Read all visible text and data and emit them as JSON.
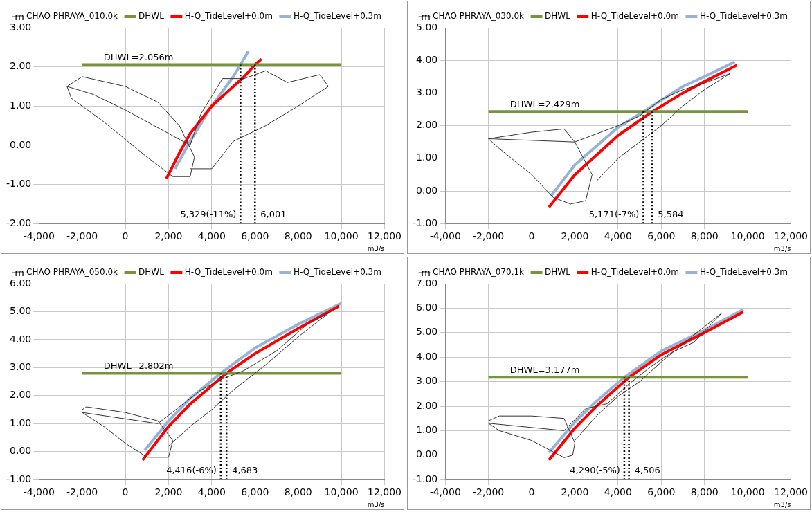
{
  "chart_data": [
    {
      "type": "line",
      "xlabel": "m3/s",
      "ylabel": "m",
      "legend": "top",
      "grid": true,
      "marker": "none",
      "xlim": [
        -4000,
        12000
      ],
      "xticks": [
        {
          "value": -4000,
          "label": "-4,000"
        },
        {
          "value": -2000,
          "label": "-2,000"
        },
        {
          "value": 0,
          "label": "0"
        },
        {
          "value": 2000,
          "label": "2,000"
        },
        {
          "value": 4000,
          "label": "4,000"
        },
        {
          "value": 6000,
          "label": "6,000"
        },
        {
          "value": 8000,
          "label": "8,000"
        },
        {
          "value": 10000,
          "label": "10,000"
        },
        {
          "value": 12000,
          "label": "12,000"
        }
      ],
      "ylim": [
        -2,
        3
      ],
      "yticks": [
        {
          "value": -2,
          "label": "-2.00"
        },
        {
          "value": -1,
          "label": "-1.00"
        },
        {
          "value": 0,
          "label": "0.00"
        },
        {
          "value": 1,
          "label": "1.00"
        },
        {
          "value": 2,
          "label": "2.00"
        },
        {
          "value": 3,
          "label": "3.00"
        }
      ],
      "series": [
        {
          "name": "CHAO PHRAYA_010.0k",
          "color": "#333333",
          "x": [
            -2700,
            -2000,
            0,
            1500,
            2500,
            3200,
            3000,
            2200,
            1000,
            -1000,
            -2500,
            -2700,
            -1500,
            0,
            2000,
            3000,
            3500,
            4500,
            5500,
            6500,
            7500,
            9000,
            9400,
            8000,
            6500,
            5000,
            4000,
            3000
          ],
          "values": [
            1.5,
            1.75,
            1.5,
            1.1,
            0.5,
            -0.3,
            -0.8,
            -0.8,
            -0.3,
            0.6,
            1.2,
            1.5,
            1.3,
            0.9,
            0.3,
            0,
            0.8,
            1.7,
            1.7,
            1.9,
            1.6,
            1.8,
            1.5,
            1.0,
            0.5,
            0.1,
            -0.6,
            -0.6
          ]
        },
        {
          "name": "DHWL",
          "color": "#77933c",
          "x": [
            -2000,
            10000
          ],
          "values": [
            2.056,
            2.056
          ]
        },
        {
          "name": "H-Q_TideLevel+0.0m",
          "color": "#ff0000",
          "x": [
            1900,
            2500,
            3000,
            4000,
            5000,
            5500,
            6001,
            6300
          ],
          "values": [
            -0.85,
            -0.2,
            0.3,
            1.0,
            1.5,
            1.75,
            2.056,
            2.2
          ]
        },
        {
          "name": "H-Q_TideLevel+0.3m",
          "color": "#95b3d7",
          "x": [
            2300,
            3000,
            4000,
            5000,
            5329,
            5700
          ],
          "values": [
            -0.6,
            0.1,
            1.0,
            1.75,
            2.056,
            2.4
          ]
        },
        {
          "color": "#000000",
          "line_style": "dotted",
          "x": [
            5329,
            5329
          ],
          "values": [
            -2,
            2.056
          ]
        },
        {
          "color": "#000000",
          "line_style": "dotted",
          "x": [
            6001,
            6001
          ],
          "values": [
            -2,
            2.056
          ]
        }
      ],
      "annotations": [
        {
          "text": "DHWL=2.056m",
          "x": -1000,
          "y": 2.056
        },
        {
          "text": "5,329(-11%)",
          "x": 5329,
          "y": -2
        },
        {
          "text": "6,001",
          "x": 6001,
          "y": -2
        }
      ]
    },
    {
      "type": "line",
      "xlabel": "m3/s",
      "ylabel": "m",
      "legend": "top",
      "grid": true,
      "marker": "none",
      "xlim": [
        -4000,
        12000
      ],
      "xticks": [
        {
          "value": -4000,
          "label": "-4,000"
        },
        {
          "value": -2000,
          "label": "-2,000"
        },
        {
          "value": 0,
          "label": "0"
        },
        {
          "value": 2000,
          "label": "2,000"
        },
        {
          "value": 4000,
          "label": "4,000"
        },
        {
          "value": 6000,
          "label": "6,000"
        },
        {
          "value": 8000,
          "label": "8,000"
        },
        {
          "value": 10000,
          "label": "10,000"
        },
        {
          "value": 12000,
          "label": "12,000"
        }
      ],
      "ylim": [
        -1,
        5
      ],
      "yticks": [
        {
          "value": -1,
          "label": "-1.00"
        },
        {
          "value": 0,
          "label": "0.00"
        },
        {
          "value": 1,
          "label": "1.00"
        },
        {
          "value": 2,
          "label": "2.00"
        },
        {
          "value": 3,
          "label": "3.00"
        },
        {
          "value": 4,
          "label": "4.00"
        },
        {
          "value": 5,
          "label": "5.00"
        }
      ],
      "series": [
        {
          "name": "CHAO PHRAYA_030.0k",
          "color": "#333333",
          "x": [
            -2000,
            -1000,
            0,
            1500,
            2000,
            2800,
            2500,
            1800,
            1000,
            0,
            -1500,
            -2000,
            2000,
            4000,
            5000,
            6000,
            7000,
            8000,
            9200,
            8000,
            7000,
            6000,
            5000,
            4000,
            3000
          ],
          "values": [
            1.6,
            1.7,
            1.8,
            1.9,
            1.5,
            0.5,
            -0.3,
            -0.4,
            -0.2,
            0.5,
            1.3,
            1.6,
            1.5,
            2.0,
            2.3,
            2.8,
            3.1,
            3.3,
            3.6,
            3.1,
            2.6,
            2.0,
            1.5,
            1.0,
            0.3
          ]
        },
        {
          "name": "DHWL",
          "color": "#77933c",
          "x": [
            -2000,
            10000
          ],
          "values": [
            2.429,
            2.429
          ]
        },
        {
          "name": "H-Q_TideLevel+0.0m",
          "color": "#ff0000",
          "x": [
            800,
            2000,
            4000,
            5584,
            7000,
            8000,
            9500
          ],
          "values": [
            -0.5,
            0.5,
            1.7,
            2.429,
            3.0,
            3.35,
            3.85
          ]
        },
        {
          "name": "H-Q_TideLevel+0.3m",
          "color": "#95b3d7",
          "x": [
            900,
            2000,
            4000,
            5171,
            7000,
            8000,
            9400
          ],
          "values": [
            -0.15,
            0.8,
            1.95,
            2.429,
            3.2,
            3.5,
            3.95
          ]
        },
        {
          "color": "#000000",
          "line_style": "dotted",
          "x": [
            5171,
            5171
          ],
          "values": [
            -1,
            2.429
          ]
        },
        {
          "color": "#000000",
          "line_style": "dotted",
          "x": [
            5584,
            5584
          ],
          "values": [
            -1,
            2.429
          ]
        }
      ],
      "annotations": [
        {
          "text": "DHWL=2.429m",
          "x": -1000,
          "y": 2.429
        },
        {
          "text": "5,171(-7%)",
          "x": 5171,
          "y": -1
        },
        {
          "text": "5,584",
          "x": 5584,
          "y": -1
        }
      ]
    },
    {
      "type": "line",
      "xlabel": "m3/s",
      "ylabel": "m",
      "legend": "top",
      "grid": true,
      "marker": "none",
      "xlim": [
        -4000,
        12000
      ],
      "xticks": [
        {
          "value": -4000,
          "label": "-4,000"
        },
        {
          "value": -2000,
          "label": "-2,000"
        },
        {
          "value": 0,
          "label": "0"
        },
        {
          "value": 2000,
          "label": "2,000"
        },
        {
          "value": 4000,
          "label": "4,000"
        },
        {
          "value": 6000,
          "label": "6,000"
        },
        {
          "value": 8000,
          "label": "8,000"
        },
        {
          "value": 10000,
          "label": "10,000"
        },
        {
          "value": 12000,
          "label": "12,000"
        }
      ],
      "ylim": [
        -1,
        6
      ],
      "yticks": [
        {
          "value": -1,
          "label": "-1.00"
        },
        {
          "value": 0,
          "label": "0.00"
        },
        {
          "value": 1,
          "label": "1.00"
        },
        {
          "value": 2,
          "label": "2.00"
        },
        {
          "value": 3,
          "label": "3.00"
        },
        {
          "value": 4,
          "label": "4.00"
        },
        {
          "value": 5,
          "label": "5.00"
        },
        {
          "value": 6,
          "label": "6.00"
        }
      ],
      "series": [
        {
          "name": "CHAO PHRAYA_050.0k",
          "color": "#333333",
          "x": [
            -2000,
            -1800,
            0,
            1500,
            2200,
            2000,
            1000,
            0,
            -1000,
            -2000,
            1500,
            2500,
            3500,
            4500,
            5500,
            7000,
            8500,
            9500,
            8000,
            6500,
            5000,
            4000,
            3000,
            2000
          ],
          "values": [
            1.5,
            1.6,
            1.4,
            1.1,
            0.4,
            -0.2,
            -0.2,
            0.3,
            0.9,
            1.4,
            1.0,
            1.6,
            2.2,
            2.6,
            2.9,
            3.6,
            4.6,
            5.0,
            4.1,
            3.1,
            2.2,
            1.5,
            0.9,
            0.2
          ]
        },
        {
          "name": "DHWL",
          "color": "#77933c",
          "x": [
            -2000,
            10000
          ],
          "values": [
            2.802,
            2.802
          ]
        },
        {
          "name": "H-Q_TideLevel+0.0m",
          "color": "#ff0000",
          "x": [
            800,
            2000,
            3000,
            4683,
            6000,
            8000,
            9900
          ],
          "values": [
            -0.3,
            0.9,
            1.7,
            2.802,
            3.5,
            4.4,
            5.2
          ]
        },
        {
          "name": "H-Q_TideLevel+0.3m",
          "color": "#95b3d7",
          "x": [
            900,
            2000,
            3000,
            4416,
            6000,
            8000,
            10000
          ],
          "values": [
            0.05,
            1.1,
            1.9,
            2.802,
            3.7,
            4.55,
            5.3
          ]
        },
        {
          "color": "#000000",
          "line_style": "dotted",
          "x": [
            4416,
            4416
          ],
          "values": [
            -1,
            2.802
          ]
        },
        {
          "color": "#000000",
          "line_style": "dotted",
          "x": [
            4683,
            4683
          ],
          "values": [
            -1,
            2.802
          ]
        }
      ],
      "annotations": [
        {
          "text": "DHWL=2.802m",
          "x": -1000,
          "y": 2.802
        },
        {
          "text": "4,416(-6%)",
          "x": 4416,
          "y": -1
        },
        {
          "text": "4,683",
          "x": 4683,
          "y": -1
        }
      ]
    },
    {
      "type": "line",
      "xlabel": "m3/s",
      "ylabel": "m",
      "legend": "top",
      "grid": true,
      "marker": "none",
      "xlim": [
        -4000,
        12000
      ],
      "xticks": [
        {
          "value": -4000,
          "label": "-4,000"
        },
        {
          "value": -2000,
          "label": "-2,000"
        },
        {
          "value": 0,
          "label": "0"
        },
        {
          "value": 2000,
          "label": "2,000"
        },
        {
          "value": 4000,
          "label": "4,000"
        },
        {
          "value": 6000,
          "label": "6,000"
        },
        {
          "value": 8000,
          "label": "8,000"
        },
        {
          "value": 10000,
          "label": "10,000"
        },
        {
          "value": 12000,
          "label": "12,000"
        }
      ],
      "ylim": [
        -1,
        7
      ],
      "yticks": [
        {
          "value": -1,
          "label": "-1.00"
        },
        {
          "value": 0,
          "label": "0.00"
        },
        {
          "value": 1,
          "label": "1.00"
        },
        {
          "value": 2,
          "label": "2.00"
        },
        {
          "value": 3,
          "label": "3.00"
        },
        {
          "value": 4,
          "label": "4.00"
        },
        {
          "value": 5,
          "label": "5.00"
        },
        {
          "value": 6,
          "label": "6.00"
        },
        {
          "value": 7,
          "label": "7.00"
        }
      ],
      "series": [
        {
          "name": "CHAO PHRAYA_070.1k",
          "color": "#333333",
          "x": [
            -2000,
            -1500,
            0,
            1500,
            2000,
            1900,
            1500,
            0,
            -1500,
            -2000,
            1500,
            2500,
            3500,
            4500,
            5500,
            6500,
            7500,
            8800,
            7500,
            6000,
            5000,
            4000,
            3000,
            2000
          ],
          "values": [
            1.4,
            1.6,
            1.6,
            1.5,
            0.5,
            0,
            -0.1,
            0.6,
            1.0,
            1.3,
            1.0,
            1.9,
            2.1,
            2.9,
            3.6,
            4.2,
            4.6,
            5.8,
            4.9,
            3.8,
            3.0,
            2.4,
            1.6,
            0.6
          ]
        },
        {
          "name": "DHWL",
          "color": "#77933c",
          "x": [
            -2000,
            10000
          ],
          "values": [
            3.177,
            3.177
          ]
        },
        {
          "name": "H-Q_TideLevel+0.0m",
          "color": "#ff0000",
          "x": [
            800,
            2000,
            3000,
            4506,
            6000,
            8000,
            9800
          ],
          "values": [
            -0.2,
            1.1,
            2.0,
            3.177,
            4.1,
            5.0,
            5.85
          ]
        },
        {
          "name": "H-Q_TideLevel+0.3m",
          "color": "#95b3d7",
          "x": [
            800,
            2000,
            3000,
            4290,
            6000,
            8000,
            9800
          ],
          "values": [
            0.1,
            1.35,
            2.2,
            3.177,
            4.25,
            5.1,
            5.95
          ]
        },
        {
          "color": "#000000",
          "line_style": "dotted",
          "x": [
            4290,
            4290
          ],
          "values": [
            -1,
            3.177
          ]
        },
        {
          "color": "#000000",
          "line_style": "dotted",
          "x": [
            4506,
            4506
          ],
          "values": [
            -1,
            3.177
          ]
        }
      ],
      "annotations": [
        {
          "text": "DHWL=3.177m",
          "x": -1000,
          "y": 3.177
        },
        {
          "text": "4,290(-5%)",
          "x": 4290,
          "y": -1
        },
        {
          "text": "4,506",
          "x": 4506,
          "y": -1
        }
      ]
    }
  ]
}
